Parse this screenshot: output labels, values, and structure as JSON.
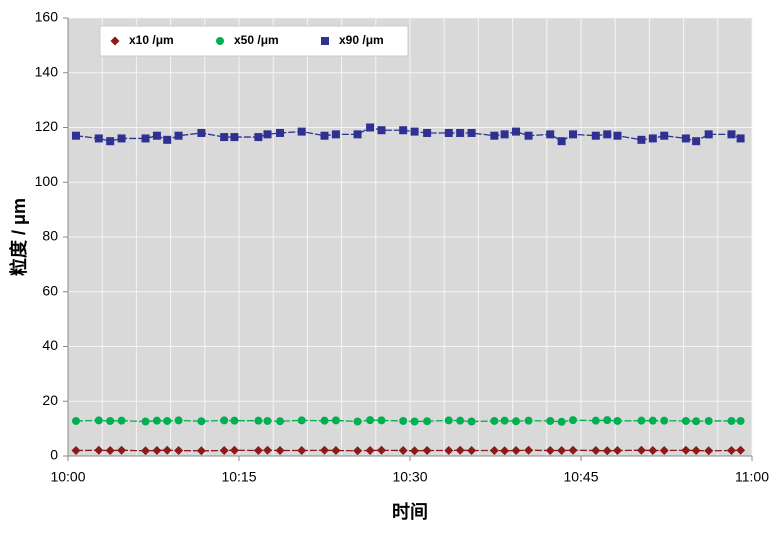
{
  "chart_data": {
    "type": "line",
    "x_label": "时间",
    "y_label": "粒度 / μm",
    "x": [
      0.7,
      2.7,
      3.7,
      4.7,
      6.8,
      7.8,
      8.7,
      9.7,
      11.7,
      13.7,
      14.6,
      16.7,
      17.5,
      18.6,
      20.5,
      22.5,
      23.5,
      25.4,
      26.5,
      27.5,
      29.4,
      30.4,
      31.5,
      33.4,
      34.4,
      35.4,
      37.4,
      38.3,
      39.3,
      40.4,
      42.3,
      43.3,
      44.3,
      46.3,
      47.3,
      48.2,
      50.3,
      51.3,
      52.3,
      54.2,
      55.1,
      56.2,
      58.2,
      59.0
    ],
    "series": [
      {
        "name": "x10 /μm",
        "color": "#8b1a1a",
        "marker": "diamond",
        "values": [
          2.0,
          2.1,
          2.0,
          2.1,
          1.9,
          2.0,
          2.1,
          2.0,
          1.9,
          2.0,
          2.1,
          2.0,
          2.1,
          2.0,
          2.0,
          2.1,
          2.0,
          1.9,
          2.0,
          2.1,
          2.0,
          1.9,
          2.0,
          2.0,
          2.1,
          2.0,
          2.0,
          1.9,
          2.0,
          2.1,
          2.0,
          2.0,
          2.1,
          2.0,
          1.9,
          2.0,
          2.1,
          2.0,
          2.0,
          2.1,
          2.0,
          1.9,
          2.0,
          2.1
        ]
      },
      {
        "name": "x50 /μm",
        "color": "#00b050",
        "marker": "circle",
        "values": [
          12.8,
          13.0,
          12.8,
          12.9,
          12.6,
          12.9,
          12.8,
          13.0,
          12.7,
          13.0,
          12.9,
          12.9,
          12.8,
          12.7,
          13.0,
          12.9,
          13.0,
          12.6,
          13.1,
          13.0,
          12.8,
          12.6,
          12.7,
          13.0,
          12.9,
          12.6,
          12.8,
          12.9,
          12.7,
          12.9,
          12.8,
          12.5,
          13.1,
          12.9,
          13.1,
          12.8,
          12.9,
          12.9,
          12.9,
          12.8,
          12.7,
          12.8,
          12.8,
          12.8
        ]
      },
      {
        "name": "x90 /μm",
        "color": "#2e3192",
        "marker": "square",
        "values": [
          117,
          116,
          115,
          116,
          116,
          117,
          115.5,
          117,
          118,
          116.5,
          116.5,
          116.5,
          117.5,
          118,
          118.5,
          117,
          117.5,
          117.5,
          120,
          119,
          119,
          118.5,
          118,
          118,
          118,
          118,
          117,
          117.5,
          118.5,
          117,
          117.5,
          115,
          117.5,
          117,
          117.5,
          117,
          115.5,
          116,
          117,
          116,
          115,
          117.5,
          117.5,
          116
        ]
      }
    ],
    "xlim": [
      0,
      60
    ],
    "xticks": [
      {
        "value": 0,
        "label": "10:00"
      },
      {
        "value": 15,
        "label": "10:15"
      },
      {
        "value": 30,
        "label": "10:30"
      },
      {
        "value": 45,
        "label": "10:45"
      },
      {
        "value": 60,
        "label": "11:00"
      }
    ],
    "xminorticks": [
      3,
      6,
      9,
      12,
      18,
      21,
      24,
      27,
      33,
      36,
      39,
      42,
      48,
      51,
      54,
      57
    ],
    "ylim": [
      0,
      160
    ],
    "yticks": [
      0,
      20,
      40,
      60,
      80,
      100,
      120,
      140,
      160
    ],
    "grid": true,
    "legend": "upper left"
  }
}
